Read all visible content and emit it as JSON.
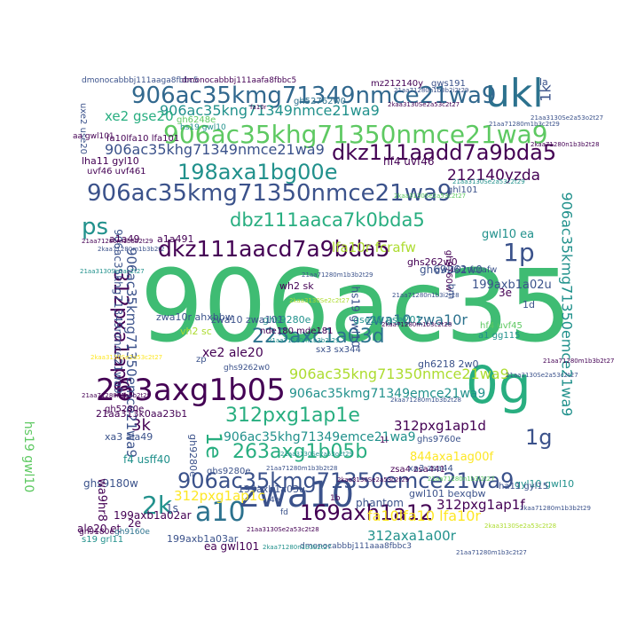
{
  "colors": {
    "background": "#ffffff",
    "palette": [
      "#440154",
      "#3b528b",
      "#2c728e",
      "#21918c",
      "#28ae80",
      "#3fbc73",
      "#5ec962",
      "#addc30",
      "#fde725"
    ]
  },
  "words": [
    {
      "text": "906ac35",
      "color": "#3fbc73"
    },
    {
      "text": "0g",
      "color": "#28ae80"
    },
    {
      "text": "ukl",
      "color": "#2c728e"
    },
    {
      "text": "906ac35kmg71349nmce21wa9",
      "color": "#31688e"
    },
    {
      "text": "906ac35kng71349nmce21wa9",
      "color": "#21918c"
    },
    {
      "text": "906ac35khg71350nmce21wa9",
      "color": "#5ec962"
    },
    {
      "text": "dkz111aadd7a9bda5",
      "color": "#440154"
    },
    {
      "text": "906ac35khg71349nmce21wa9",
      "color": "#3b528b"
    },
    {
      "text": "198axa1bg00e",
      "color": "#21918c"
    },
    {
      "text": "212140yzda",
      "color": "#440154"
    },
    {
      "text": "906ac35kmg71350nmce21wa9",
      "color": "#3b528b"
    },
    {
      "text": "dbz111aaca7k0bda5",
      "color": "#28ae80"
    },
    {
      "text": "ps",
      "color": "#21918c"
    },
    {
      "text": "dkz111aacd7a9bda5",
      "color": "#440154"
    },
    {
      "text": "1p",
      "color": "#3b528b"
    },
    {
      "text": "312pxa1ap0f",
      "color": "#440154"
    },
    {
      "text": "lfa10r fcrafw",
      "color": "#addc30"
    },
    {
      "text": "906ac35kmg71350emce21wa9",
      "color": "#21918c"
    },
    {
      "text": "225axc1a03d",
      "color": "#2c728e"
    },
    {
      "text": "263axg1b05",
      "color": "#440154"
    },
    {
      "text": "906ac35kng71350nmce21wa9",
      "color": "#addc30"
    },
    {
      "text": "906ac35kmg71349emce21wa9",
      "color": "#21918c"
    },
    {
      "text": "312pxg1ap1e",
      "color": "#28ae80"
    },
    {
      "text": "263axg1b05b",
      "color": "#28ae80"
    },
    {
      "text": "1g",
      "color": "#3b528b"
    },
    {
      "text": "906ac35kmg71350emce21wa9",
      "color": "#3b528b"
    },
    {
      "text": "906ac35khg71349emce21wa9",
      "color": "#21918c"
    },
    {
      "text": "a10",
      "color": "#2c728e"
    },
    {
      "text": "zwa10",
      "color": "#3b528b"
    },
    {
      "text": "2k",
      "color": "#21918c"
    },
    {
      "text": "169axh1a12",
      "color": "#440154"
    },
    {
      "text": "312pxg1ap1c",
      "color": "#fde725"
    },
    {
      "text": "312pxg1ap1f",
      "color": "#440154"
    },
    {
      "text": "fa10lfa10 lfa10r",
      "color": "#fde725"
    },
    {
      "text": "312axa1a00r",
      "color": "#21918c"
    },
    {
      "text": "1e",
      "color": "#28ae80"
    },
    {
      "text": "3k",
      "color": "#440154"
    },
    {
      "text": "312pxg1ap1d",
      "color": "#440154"
    },
    {
      "text": "844axa1ag00f",
      "color": "#fde725"
    },
    {
      "text": "xe2 ale20",
      "color": "#440154"
    },
    {
      "text": "zwa10 zwa10r",
      "color": "#2c728e"
    },
    {
      "text": "xe2 gse20",
      "color": "#28ae80"
    },
    {
      "text": "906ac35kmg71350emce21wa9",
      "color": "#3b528b"
    },
    {
      "text": "906ac35khg71349nmce21wa9",
      "color": "#3b528b"
    },
    {
      "text": "hs19 gwl10",
      "color": "#5ec962"
    },
    {
      "text": "dmonocabbbj111aaga8fbbc5",
      "color": "#3b528b"
    },
    {
      "text": "dmonocabbbj111aafa8fbbc5",
      "color": "#440154"
    },
    {
      "text": "gh52762w0",
      "color": "#2c728e"
    },
    {
      "text": "199axb1a02u",
      "color": "#3b528b"
    },
    {
      "text": "199axb1a03u",
      "color": "#3b528b"
    },
    {
      "text": "199axb1a03ar",
      "color": "#3b528b"
    },
    {
      "text": "199axb1a02ar",
      "color": "#440154"
    },
    {
      "text": "a1a49",
      "color": "#440154"
    },
    {
      "text": "a1a491",
      "color": "#440154"
    },
    {
      "text": "gwl10 ea",
      "color": "#21918c"
    },
    {
      "text": "hf4 uvf46",
      "color": "#440154"
    },
    {
      "text": "uvf46 uvf461",
      "color": "#440154"
    },
    {
      "text": "lha11 gyl10",
      "color": "#440154"
    },
    {
      "text": "zwa10r ahxbbw",
      "color": "#3b528b"
    },
    {
      "text": "fa10lfa10 lfa101",
      "color": "#440154"
    },
    {
      "text": "ale20 et",
      "color": "#440154"
    },
    {
      "text": "s19 grl11",
      "color": "#21918c"
    },
    {
      "text": "gwl101 bexqbw",
      "color": "#3b528b"
    },
    {
      "text": "ghs262w0",
      "color": "#440154"
    },
    {
      "text": "gh69262w0",
      "color": "#3b528b"
    },
    {
      "text": "gh6218 2w0",
      "color": "#3b528b"
    },
    {
      "text": "ghs9760e",
      "color": "#3b528b"
    },
    {
      "text": "ghs9280e",
      "color": "#21918c"
    },
    {
      "text": "gh9760w",
      "color": "#440154"
    },
    {
      "text": "ghs9180w",
      "color": "#3b528b"
    },
    {
      "text": "phantom",
      "color": "#3b528b"
    },
    {
      "text": "1s",
      "color": "#3b528b"
    },
    {
      "text": "2e",
      "color": "#440154"
    },
    {
      "text": "3e",
      "color": "#440154"
    },
    {
      "text": "1d",
      "color": "#3b528b"
    },
    {
      "text": "1k",
      "color": "#3b528b"
    },
    {
      "text": "la",
      "color": "#3b528b"
    },
    {
      "text": "bm",
      "color": "#3b528b"
    },
    {
      "text": "ea gwl101",
      "color": "#440154"
    },
    {
      "text": "wa9hr8",
      "color": "#440154"
    },
    {
      "text": "hs19 gwl10",
      "color": "#3b528b"
    },
    {
      "text": "xa3 ala49",
      "color": "#3b528b"
    },
    {
      "text": "f4 usff40",
      "color": "#21918c"
    },
    {
      "text": "wh2 sk",
      "color": "#440154"
    },
    {
      "text": "gse20 gse201",
      "color": "#21918c"
    },
    {
      "text": "zwa10 zwa101",
      "color": "#3b528b"
    },
    {
      "text": "vh2 sc",
      "color": "#addc30"
    },
    {
      "text": "zp",
      "color": "#3b528b"
    },
    {
      "text": "nde180 mde181",
      "color": "#440154"
    },
    {
      "text": "21aa313k0aa23b1",
      "color": "#440154"
    },
    {
      "text": "ghs9262w0",
      "color": "#3b528b"
    },
    {
      "text": "gh5280e",
      "color": "#440154"
    },
    {
      "text": "gh9280e",
      "color": "#3b528b"
    },
    {
      "text": "hs19 gwl10",
      "color": "#21918c"
    },
    {
      "text": "gh9160e",
      "color": "#2c728e"
    },
    {
      "text": "fd",
      "color": "#3b528b"
    },
    {
      "text": "4e",
      "color": "#3b528b"
    },
    {
      "text": "1b",
      "color": "#440154"
    },
    {
      "text": "1l",
      "color": "#440154"
    },
    {
      "text": "dmonocabbbj111aaa8fbbc3",
      "color": "#3b528b"
    },
    {
      "text": "sx3 sx344",
      "color": "#3b528b"
    },
    {
      "text": "zsa4 zsa441",
      "color": "#440154"
    },
    {
      "text": "gwl101 fcrafw",
      "color": "#3b528b"
    },
    {
      "text": "ghl101",
      "color": "#3b528b"
    },
    {
      "text": "gh6248e",
      "color": "#5ec962"
    },
    {
      "text": "uxe2 use20",
      "color": "#3b528b"
    },
    {
      "text": "gyl10 gwl10",
      "color": "#21918c"
    },
    {
      "text": "gh9180e",
      "color": "#440154"
    },
    {
      "text": "a1 gg115",
      "color": "#21918c"
    },
    {
      "text": "hf4 uvf45",
      "color": "#5ec962"
    },
    {
      "text": "ha11 gyl15",
      "color": "#3b528b"
    },
    {
      "text": "xa3 zsa44",
      "color": "#3b528b"
    },
    {
      "text": "ghs9280e",
      "color": "#3b528b"
    },
    {
      "text": "gws191",
      "color": "#3b528b"
    },
    {
      "text": "mz212140y",
      "color": "#440154"
    },
    {
      "text": "aa gwl101",
      "color": "#440154"
    },
    {
      "text": "fa10r",
      "color": "#440154"
    },
    {
      "text": "21aa71280n1b3b2i2t29",
      "color": "#3b528b"
    },
    {
      "text": "2kaa3130Se2a53c2t27",
      "color": "#440154"
    },
    {
      "text": "21aa3130Se2a53o2t27",
      "color": "#3b528b"
    },
    {
      "text": "21aa71280m1b3c2t29",
      "color": "#3b528b"
    },
    {
      "text": "2kaa71280n1b3b2t28",
      "color": "#440154"
    },
    {
      "text": "21aa3130Se2a53c2t29",
      "color": "#21918c"
    },
    {
      "text": "2kaa3130Se2a53c2t27",
      "color": "#5ec962"
    },
    {
      "text": "21aa71280m1b3b2t29",
      "color": "#440154"
    },
    {
      "text": "2kaa71280m1b3b2t2",
      "color": "#3b528b"
    },
    {
      "text": "21aa3130Se2ac2t27",
      "color": "#21918c"
    },
    {
      "text": "21aa71280m1b3b2t29",
      "color": "#3b528b"
    },
    {
      "text": "2kaa3130Se2c2t27",
      "color": "#addc30"
    },
    {
      "text": "21aa71280n1b3i2t28",
      "color": "#3b528b"
    },
    {
      "text": "2kaa71280m1b3c2t28",
      "color": "#440154"
    },
    {
      "text": "21aa71280m1b3b2t29",
      "color": "#21918c"
    },
    {
      "text": "2kaa3130Se2a53c2t27",
      "color": "#fde725"
    },
    {
      "text": "21aa71280n1b3b2t29",
      "color": "#440154"
    },
    {
      "text": "2kaa71280m1b3b2t28",
      "color": "#3b528b"
    },
    {
      "text": "21aa3130Se2a53o2t29",
      "color": "#21918c"
    },
    {
      "text": "21aa71280m1b3b2t28",
      "color": "#3b528b"
    },
    {
      "text": "2kaa3130Se2a53c2t29",
      "color": "#440154"
    },
    {
      "text": "21aa71280n1b3i2t27",
      "color": "#5ec962"
    },
    {
      "text": "2kaa71280m1b3b2t29",
      "color": "#3b528b"
    },
    {
      "text": "21aa3130Se2a53c2t28",
      "color": "#440154"
    },
    {
      "text": "2kaa71280n1b3b2t27",
      "color": "#21918c"
    },
    {
      "text": "21aa71280m1b3c2t27",
      "color": "#3b528b"
    },
    {
      "text": "2kaa3130Se2a53c2t28",
      "color": "#addc30"
    },
    {
      "text": "21aa71280m1b3b2t27",
      "color": "#440154"
    },
    {
      "text": "21aa3130Se2a53c2t27",
      "color": "#3b528b"
    },
    {
      "text": "2kaa71280m1b3i2t29",
      "color": "#21918c"
    },
    {
      "text": "21aa71280n1b3b2t28",
      "color": "#3b528b"
    },
    {
      "text": "2kaa3130Se2a53c2t27",
      "color": "#440154"
    }
  ]
}
